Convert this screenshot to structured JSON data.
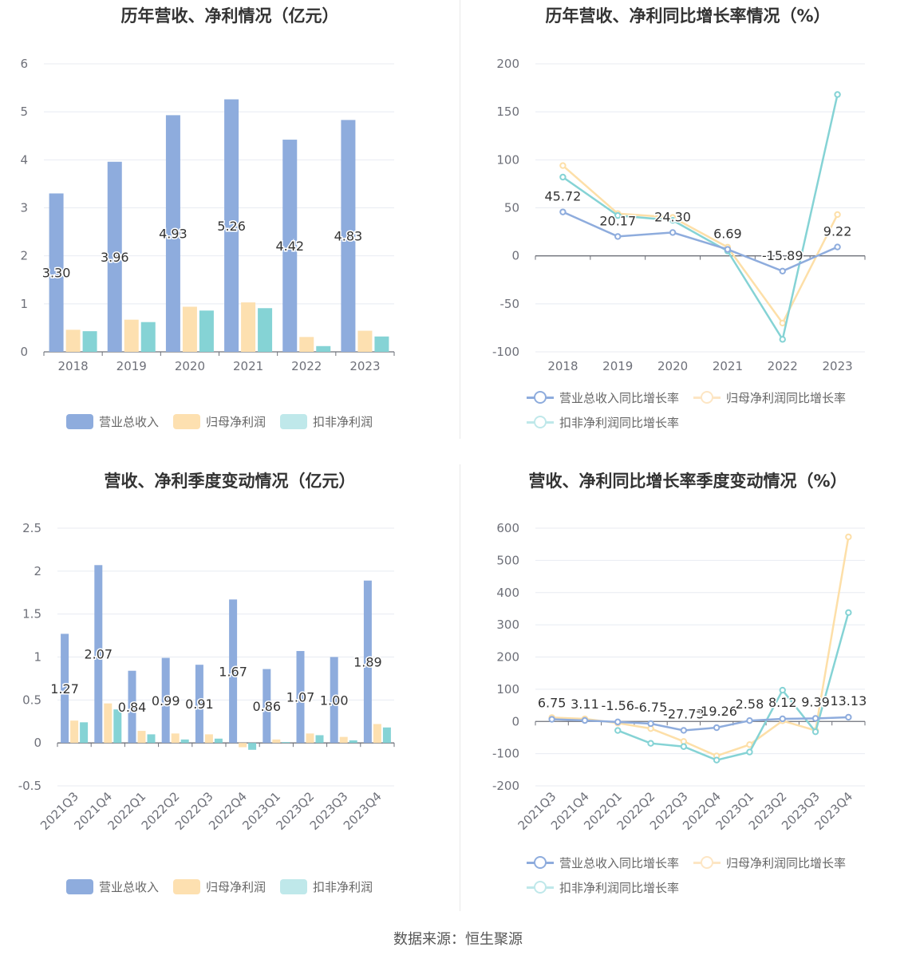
{
  "source_text": "数据来源：恒生聚源",
  "colors": {
    "revenue": "#8EACDD",
    "net_profit": "#FDE0B0",
    "deducted_profit": "#85D3D5",
    "grid": "#E8EBF2",
    "axis": "#6E7079",
    "axis_text": "#6E7079"
  },
  "chart_data": [
    {
      "id": "annual_bars",
      "type": "bar",
      "title": "历年营收、净利情况（亿元）",
      "categories": [
        "2018",
        "2019",
        "2020",
        "2021",
        "2022",
        "2023"
      ],
      "ylim": [
        0,
        6
      ],
      "yticks": [
        0,
        1,
        2,
        3,
        4,
        5,
        6
      ],
      "grid": true,
      "legend_position": "bottom",
      "series": [
        {
          "name": "营业总收入",
          "values": [
            3.3,
            3.96,
            4.93,
            5.26,
            4.42,
            4.83
          ],
          "labels": [
            "3.30",
            "3.96",
            "4.93",
            "5.26",
            "4.42",
            "4.83"
          ]
        },
        {
          "name": "归母净利润",
          "values": [
            0.46,
            0.67,
            0.94,
            1.03,
            0.31,
            0.44
          ]
        },
        {
          "name": "扣非净利润",
          "values": [
            0.43,
            0.62,
            0.86,
            0.91,
            0.12,
            0.32
          ]
        }
      ]
    },
    {
      "id": "annual_growth",
      "type": "line",
      "title": "历年营收、净利同比增长率情况（%）",
      "categories": [
        "2018",
        "2019",
        "2020",
        "2021",
        "2022",
        "2023"
      ],
      "ylim": [
        -100,
        200
      ],
      "yticks": [
        -100,
        -50,
        0,
        50,
        100,
        150,
        200
      ],
      "grid": true,
      "legend_position": "bottom",
      "series": [
        {
          "name": "营业总收入同比增长率",
          "values": [
            45.72,
            20.17,
            24.3,
            6.69,
            -15.89,
            9.22
          ],
          "labels": [
            "45.72",
            "20.17",
            "24.30",
            "6.69",
            "-15.89",
            "9.22"
          ]
        },
        {
          "name": "归母净利润同比增长率",
          "values": [
            94,
            44,
            40,
            9,
            -70,
            43
          ]
        },
        {
          "name": "扣非净利润同比增长率",
          "values": [
            82,
            42,
            37,
            5,
            -87,
            168
          ]
        }
      ]
    },
    {
      "id": "quarterly_bars",
      "type": "bar",
      "title": "营收、净利季度变动情况（亿元）",
      "categories": [
        "2021Q3",
        "2021Q4",
        "2022Q1",
        "2022Q2",
        "2022Q3",
        "2022Q4",
        "2023Q1",
        "2023Q2",
        "2023Q3",
        "2023Q4"
      ],
      "ylim": [
        -0.5,
        2.5
      ],
      "yticks": [
        -0.5,
        0,
        0.5,
        1,
        1.5,
        2,
        2.5
      ],
      "ytick_labels": [
        "-0.5",
        "0",
        "0.5",
        "1",
        "1.5",
        "2",
        "2.5"
      ],
      "grid": true,
      "legend_position": "bottom",
      "series": [
        {
          "name": "营业总收入",
          "values": [
            1.27,
            2.07,
            0.84,
            0.99,
            0.91,
            1.67,
            0.86,
            1.07,
            1.0,
            1.89
          ],
          "labels": [
            "1.27",
            "2.07",
            "0.84",
            "0.99",
            "0.91",
            "1.67",
            "0.86",
            "1.07",
            "1.00",
            "1.89"
          ]
        },
        {
          "name": "归母净利润",
          "values": [
            0.26,
            0.46,
            0.14,
            0.11,
            0.1,
            -0.05,
            0.04,
            0.11,
            0.07,
            0.22
          ]
        },
        {
          "name": "扣非净利润",
          "values": [
            0.24,
            0.39,
            0.1,
            0.04,
            0.05,
            -0.08,
            0.01,
            0.09,
            0.03,
            0.18
          ]
        }
      ]
    },
    {
      "id": "quarterly_growth",
      "type": "line",
      "title": "营收、净利同比增长率季度变动情况（%）",
      "categories": [
        "2021Q3",
        "2021Q4",
        "2022Q1",
        "2022Q2",
        "2022Q3",
        "2022Q4",
        "2023Q1",
        "2023Q2",
        "2023Q3",
        "2023Q4"
      ],
      "ylim": [
        -200,
        600
      ],
      "yticks": [
        -200,
        -100,
        0,
        100,
        200,
        300,
        400,
        500,
        600
      ],
      "grid": true,
      "legend_position": "bottom",
      "series": [
        {
          "name": "营业总收入同比增长率",
          "values": [
            6.75,
            3.11,
            -1.56,
            -6.75,
            -27.73,
            -19.26,
            2.58,
            8.12,
            9.39,
            13.13
          ],
          "labels": [
            "6.75",
            "3.11",
            "-1.56",
            "-6.75",
            "-27.73",
            "-19.26",
            "2.58",
            "8.12",
            "9.39",
            "13.13"
          ]
        },
        {
          "name": "归母净利润同比增长率",
          "values": [
            12,
            8,
            -5,
            -22,
            -62,
            -107,
            -72,
            2,
            -28,
            573
          ]
        },
        {
          "name": "扣非净利润同比增长率",
          "values": [
            null,
            null,
            -28,
            -68,
            -78,
            -120,
            -95,
            97,
            -32,
            338
          ]
        }
      ]
    }
  ]
}
